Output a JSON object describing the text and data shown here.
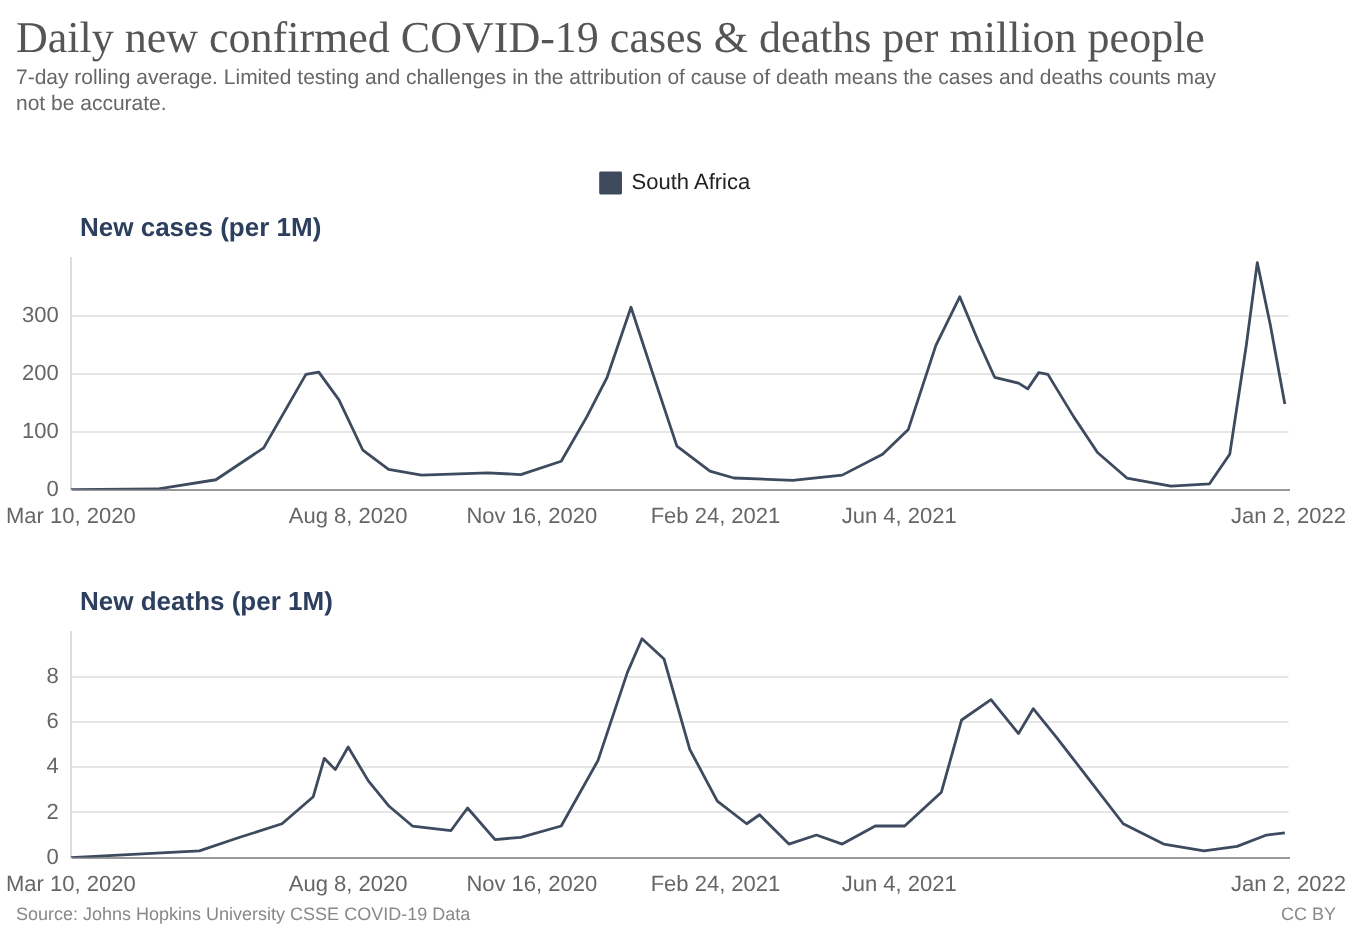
{
  "chart_data": [
    {
      "type": "line",
      "title": "Daily new confirmed COVID-19 cases & deaths per million people",
      "subtitle": "7-day rolling average. Limited testing and challenges in the attribution of cause of death means the cases and deaths counts may not be accurate.",
      "ylabel": "New cases (per 1M)",
      "legend": "top",
      "grid": "y",
      "xlim": [
        "2020-03-10",
        "2022-01-02"
      ],
      "xticks": [
        {
          "value": "2020-03-10",
          "label": "Mar 10, 2020"
        },
        {
          "value": "2020-08-08",
          "label": "Aug 8, 2020"
        },
        {
          "value": "2020-11-16",
          "label": "Nov 16, 2020"
        },
        {
          "value": "2021-02-24",
          "label": "Feb 24, 2021"
        },
        {
          "value": "2021-06-04",
          "label": "Jun 4, 2021"
        },
        {
          "value": "2022-01-02",
          "label": "Jan 2, 2022"
        }
      ],
      "ylim": [
        0,
        400
      ],
      "yticks": [
        0,
        100,
        200,
        300
      ],
      "series": [
        {
          "name": "South Africa",
          "color": "#3e4a5e",
          "x": [
            "2020-03-10",
            "2020-04-26",
            "2020-05-28",
            "2020-06-23",
            "2020-07-16",
            "2020-07-23",
            "2020-08-03",
            "2020-08-16",
            "2020-08-30",
            "2020-09-17",
            "2020-10-23",
            "2020-11-10",
            "2020-12-02",
            "2020-12-16",
            "2020-12-27",
            "2021-01-09",
            "2021-01-21",
            "2021-02-03",
            "2021-02-21",
            "2021-03-06",
            "2021-04-07",
            "2021-05-04",
            "2021-05-26",
            "2021-06-09",
            "2021-06-24",
            "2021-07-07",
            "2021-07-17",
            "2021-07-26",
            "2021-08-08",
            "2021-08-13",
            "2021-08-19",
            "2021-08-24",
            "2021-09-07",
            "2021-09-20",
            "2021-10-06",
            "2021-10-30",
            "2021-11-20",
            "2021-12-01",
            "2021-12-10",
            "2021-12-16",
            "2021-12-23",
            "2021-12-31"
          ],
          "values": [
            0,
            1,
            17,
            72,
            199,
            203,
            155,
            68,
            35,
            25,
            29,
            26,
            49,
            126,
            194,
            315,
            199,
            75,
            32,
            20,
            16,
            25,
            61,
            104,
            249,
            333,
            257,
            194,
            184,
            174,
            202,
            199,
            126,
            64,
            20,
            6,
            10,
            61,
            249,
            392,
            286,
            148
          ]
        }
      ]
    },
    {
      "type": "line",
      "ylabel": "New deaths (per 1M)",
      "grid": "y",
      "annotations": [
        "Source: Johns Hopkins University CSSE COVID-19 Data",
        "CC BY"
      ],
      "xlim": [
        "2020-03-10",
        "2022-01-02"
      ],
      "xticks": [
        {
          "value": "2020-03-10",
          "label": "Mar 10, 2020"
        },
        {
          "value": "2020-08-08",
          "label": "Aug 8, 2020"
        },
        {
          "value": "2020-11-16",
          "label": "Nov 16, 2020"
        },
        {
          "value": "2021-02-24",
          "label": "Feb 24, 2021"
        },
        {
          "value": "2021-06-04",
          "label": "Jun 4, 2021"
        },
        {
          "value": "2022-01-02",
          "label": "Jan 2, 2022"
        }
      ],
      "ylim": [
        0,
        10
      ],
      "yticks": [
        0,
        2,
        4,
        6,
        8
      ],
      "series": [
        {
          "color": "#3e4a5e",
          "x": [
            "2020-03-10",
            "2020-05-19",
            "2020-06-10",
            "2020-07-03",
            "2020-07-20",
            "2020-07-26",
            "2020-08-01",
            "2020-08-08",
            "2020-08-19",
            "2020-08-30",
            "2020-09-12",
            "2020-10-03",
            "2020-10-12",
            "2020-10-27",
            "2020-11-10",
            "2020-12-02",
            "2020-12-22",
            "2021-01-07",
            "2021-01-15",
            "2021-01-27",
            "2021-02-10",
            "2021-02-25",
            "2021-03-13",
            "2021-03-20",
            "2021-04-05",
            "2021-04-20",
            "2021-05-04",
            "2021-05-22",
            "2021-06-07",
            "2021-06-27",
            "2021-07-08",
            "2021-07-24",
            "2021-08-08",
            "2021-08-16",
            "2021-08-29",
            "2021-09-16",
            "2021-10-04",
            "2021-10-26",
            "2021-11-17",
            "2021-12-05",
            "2021-12-21",
            "2021-12-31"
          ],
          "values": [
            0,
            0.3,
            0.9,
            1.5,
            2.7,
            4.4,
            3.9,
            4.9,
            3.4,
            2.3,
            1.4,
            1.2,
            2.2,
            0.8,
            0.9,
            1.4,
            4.3,
            8.2,
            9.7,
            8.8,
            4.8,
            2.5,
            1.5,
            1.9,
            0.6,
            1.0,
            0.6,
            1.4,
            1.4,
            2.9,
            6.1,
            7.0,
            5.5,
            6.6,
            5.3,
            3.4,
            1.5,
            0.6,
            0.3,
            0.5,
            1.0,
            1.1
          ]
        }
      ]
    }
  ]
}
